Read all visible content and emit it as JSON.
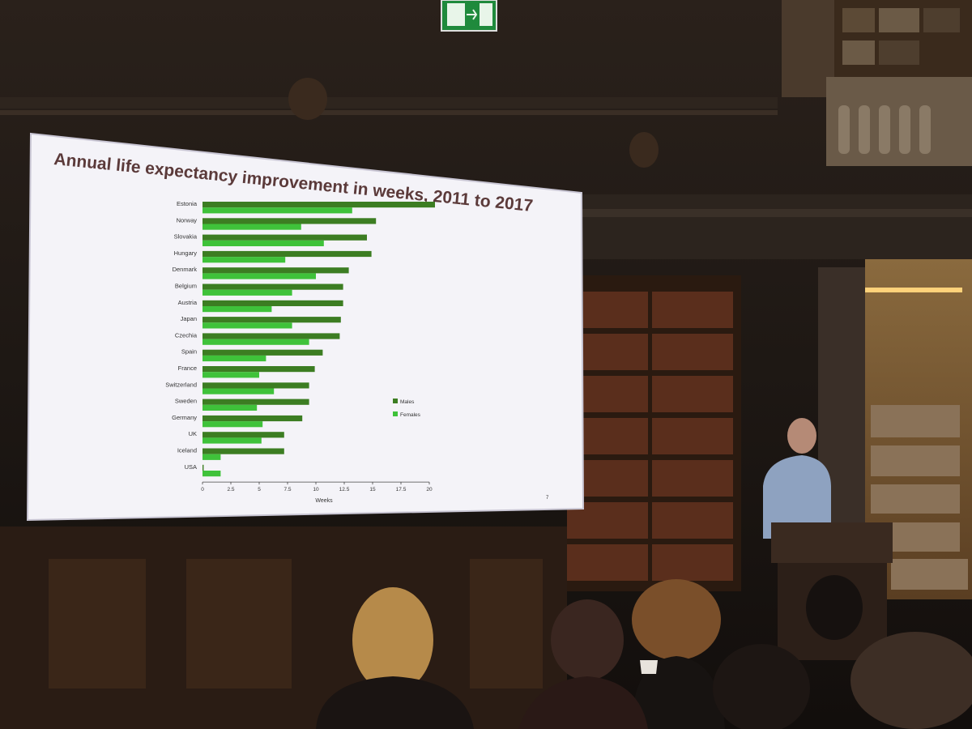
{
  "slide": {
    "title": "Annual life expectancy improvement in weeks, 2011 to 2017",
    "page_number": "7"
  },
  "colors": {
    "males": "#3c7d22",
    "females": "#3fc23a",
    "slide_bg": "#f4f3f8",
    "exit_sign": "#1f8a3c"
  },
  "chart_data": {
    "type": "bar",
    "orientation": "horizontal",
    "title": "Annual life expectancy improvement in weeks, 2011 to 2017",
    "xlabel": "Weeks",
    "ylabel": "",
    "xlim": [
      0,
      20
    ],
    "xticks": [
      "0",
      "2.5",
      "5",
      "7.5",
      "10",
      "12.5",
      "15",
      "17.5",
      "20"
    ],
    "grid": false,
    "legend_position": "right",
    "categories": [
      "Estonia",
      "Norway",
      "Slovakia",
      "Hungary",
      "Denmark",
      "Belgium",
      "Austria",
      "Japan",
      "Czechia",
      "Spain",
      "France",
      "Switzerland",
      "Sweden",
      "Germany",
      "UK",
      "Iceland",
      "USA"
    ],
    "series": [
      {
        "name": "Males",
        "values": [
          20.5,
          15.3,
          14.5,
          14.9,
          12.9,
          12.4,
          12.4,
          12.2,
          12.1,
          10.6,
          9.9,
          9.4,
          9.4,
          8.8,
          7.2,
          7.2,
          0.1
        ]
      },
      {
        "name": "Females",
        "values": [
          13.2,
          8.7,
          10.7,
          7.3,
          10.0,
          7.9,
          6.1,
          7.9,
          9.4,
          5.6,
          5.0,
          6.3,
          4.8,
          5.3,
          5.2,
          1.6,
          1.6
        ]
      }
    ]
  }
}
